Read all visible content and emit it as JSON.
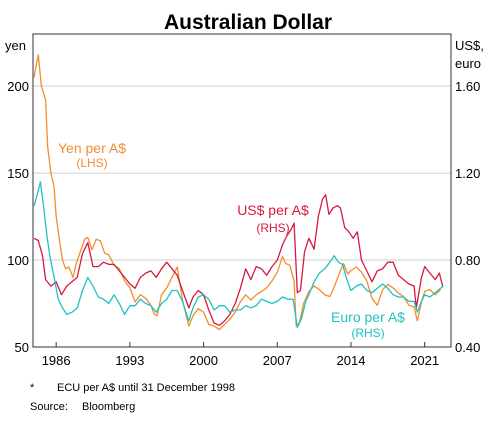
{
  "chart_data": {
    "type": "line",
    "title": "Australian Dollar",
    "left_axis": {
      "unit": "yen",
      "ticks": [
        50,
        100,
        150,
        200
      ],
      "range": [
        50,
        230
      ]
    },
    "right_axis": {
      "unit_line1": "US$,",
      "unit_line2": "euro",
      "ticks": [
        "0.40",
        "0.80",
        "1.20",
        "1.60"
      ],
      "range": [
        0.4,
        1.84
      ]
    },
    "x_axis": {
      "ticks": [
        "1986",
        "1993",
        "2000",
        "2007",
        "2014",
        "2021"
      ],
      "range": [
        1983.8,
        2023.5
      ]
    },
    "grid": true,
    "series": [
      {
        "name": "Yen per A$",
        "sub": "(LHS)",
        "axis": "left",
        "color": "#f28e2b",
        "points": [
          [
            1983.9,
            205
          ],
          [
            1984.1,
            212
          ],
          [
            1984.3,
            218
          ],
          [
            1984.6,
            200
          ],
          [
            1985.0,
            192
          ],
          [
            1985.2,
            165
          ],
          [
            1985.5,
            150
          ],
          [
            1985.8,
            142
          ],
          [
            1986.0,
            125
          ],
          [
            1986.3,
            112
          ],
          [
            1986.6,
            100
          ],
          [
            1986.9,
            95
          ],
          [
            1987.2,
            96
          ],
          [
            1987.6,
            90
          ],
          [
            1987.9,
            98
          ],
          [
            1988.3,
            105
          ],
          [
            1988.7,
            112
          ],
          [
            1989.0,
            113
          ],
          [
            1989.4,
            106
          ],
          [
            1989.8,
            112
          ],
          [
            1990.2,
            111
          ],
          [
            1990.6,
            104
          ],
          [
            1991.0,
            103
          ],
          [
            1991.5,
            97
          ],
          [
            1992.0,
            95
          ],
          [
            1992.5,
            88
          ],
          [
            1993.0,
            84
          ],
          [
            1993.5,
            76
          ],
          [
            1994.0,
            80
          ],
          [
            1994.5,
            78
          ],
          [
            1995.0,
            74
          ],
          [
            1995.3,
            69
          ],
          [
            1995.6,
            68
          ],
          [
            1996.0,
            80
          ],
          [
            1996.5,
            84
          ],
          [
            1997.0,
            90
          ],
          [
            1997.5,
            96
          ],
          [
            1998.0,
            77
          ],
          [
            1998.6,
            62
          ],
          [
            1999.0,
            68
          ],
          [
            1999.5,
            72
          ],
          [
            2000.0,
            70
          ],
          [
            2000.5,
            63
          ],
          [
            2001.0,
            62
          ],
          [
            2001.5,
            60
          ],
          [
            2002.0,
            63
          ],
          [
            2002.5,
            66
          ],
          [
            2003.0,
            70
          ],
          [
            2003.5,
            76
          ],
          [
            2004.0,
            80
          ],
          [
            2004.5,
            77
          ],
          [
            2005.0,
            80
          ],
          [
            2005.5,
            82
          ],
          [
            2006.0,
            84
          ],
          [
            2006.5,
            88
          ],
          [
            2007.0,
            93
          ],
          [
            2007.5,
            102
          ],
          [
            2007.8,
            98
          ],
          [
            2008.2,
            97
          ],
          [
            2008.6,
            88
          ],
          [
            2008.8,
            62
          ],
          [
            2009.1,
            64
          ],
          [
            2009.5,
            75
          ],
          [
            2010.0,
            82
          ],
          [
            2010.5,
            85
          ],
          [
            2011.0,
            83
          ],
          [
            2011.5,
            80
          ],
          [
            2012.0,
            79
          ],
          [
            2012.5,
            86
          ],
          [
            2013.0,
            94
          ],
          [
            2013.3,
            98
          ],
          [
            2013.7,
            92
          ],
          [
            2014.0,
            94
          ],
          [
            2014.5,
            96
          ],
          [
            2015.0,
            93
          ],
          [
            2015.5,
            88
          ],
          [
            2016.0,
            78
          ],
          [
            2016.5,
            74
          ],
          [
            2017.0,
            83
          ],
          [
            2017.5,
            86
          ],
          [
            2018.0,
            84
          ],
          [
            2018.5,
            81
          ],
          [
            2019.0,
            79
          ],
          [
            2019.5,
            74
          ],
          [
            2020.0,
            73
          ],
          [
            2020.3,
            65
          ],
          [
            2020.7,
            76
          ],
          [
            2021.0,
            82
          ],
          [
            2021.5,
            83
          ],
          [
            2022.0,
            80
          ],
          [
            2022.5,
            83
          ]
        ]
      },
      {
        "name": "US$ per A$",
        "sub": "(RHS)",
        "axis": "right",
        "color": "#d7193f",
        "points": [
          [
            1983.9,
            0.9
          ],
          [
            1984.3,
            0.89
          ],
          [
            1984.7,
            0.82
          ],
          [
            1985.0,
            0.71
          ],
          [
            1985.5,
            0.68
          ],
          [
            1986.0,
            0.7
          ],
          [
            1986.5,
            0.64
          ],
          [
            1987.0,
            0.68
          ],
          [
            1987.5,
            0.7
          ],
          [
            1988.0,
            0.72
          ],
          [
            1988.5,
            0.83
          ],
          [
            1989.0,
            0.88
          ],
          [
            1989.5,
            0.77
          ],
          [
            1990.0,
            0.77
          ],
          [
            1990.5,
            0.79
          ],
          [
            1991.0,
            0.78
          ],
          [
            1991.5,
            0.78
          ],
          [
            1992.0,
            0.75
          ],
          [
            1992.5,
            0.72
          ],
          [
            1993.0,
            0.69
          ],
          [
            1993.5,
            0.67
          ],
          [
            1994.0,
            0.72
          ],
          [
            1994.5,
            0.74
          ],
          [
            1995.0,
            0.75
          ],
          [
            1995.5,
            0.72
          ],
          [
            1996.0,
            0.76
          ],
          [
            1996.5,
            0.79
          ],
          [
            1997.0,
            0.76
          ],
          [
            1997.5,
            0.73
          ],
          [
            1998.0,
            0.66
          ],
          [
            1998.6,
            0.58
          ],
          [
            1999.0,
            0.63
          ],
          [
            1999.5,
            0.66
          ],
          [
            2000.0,
            0.64
          ],
          [
            2000.5,
            0.57
          ],
          [
            2001.0,
            0.51
          ],
          [
            2001.5,
            0.5
          ],
          [
            2002.0,
            0.52
          ],
          [
            2002.5,
            0.55
          ],
          [
            2003.0,
            0.6
          ],
          [
            2003.5,
            0.67
          ],
          [
            2004.0,
            0.76
          ],
          [
            2004.5,
            0.71
          ],
          [
            2005.0,
            0.77
          ],
          [
            2005.5,
            0.76
          ],
          [
            2006.0,
            0.73
          ],
          [
            2006.5,
            0.77
          ],
          [
            2007.0,
            0.8
          ],
          [
            2007.5,
            0.87
          ],
          [
            2007.9,
            0.91
          ],
          [
            2008.3,
            0.94
          ],
          [
            2008.6,
            0.97
          ],
          [
            2008.9,
            0.65
          ],
          [
            2009.2,
            0.66
          ],
          [
            2009.6,
            0.84
          ],
          [
            2010.0,
            0.9
          ],
          [
            2010.5,
            0.85
          ],
          [
            2010.9,
            1.0
          ],
          [
            2011.3,
            1.08
          ],
          [
            2011.6,
            1.1
          ],
          [
            2011.9,
            1.01
          ],
          [
            2012.3,
            1.04
          ],
          [
            2012.7,
            1.05
          ],
          [
            2013.0,
            1.04
          ],
          [
            2013.4,
            0.95
          ],
          [
            2013.8,
            0.93
          ],
          [
            2014.2,
            0.9
          ],
          [
            2014.6,
            0.93
          ],
          [
            2015.0,
            0.8
          ],
          [
            2015.5,
            0.75
          ],
          [
            2016.0,
            0.7
          ],
          [
            2016.5,
            0.75
          ],
          [
            2017.0,
            0.76
          ],
          [
            2017.5,
            0.79
          ],
          [
            2018.0,
            0.79
          ],
          [
            2018.5,
            0.73
          ],
          [
            2019.0,
            0.71
          ],
          [
            2019.5,
            0.69
          ],
          [
            2020.0,
            0.68
          ],
          [
            2020.2,
            0.58
          ],
          [
            2020.7,
            0.72
          ],
          [
            2021.0,
            0.77
          ],
          [
            2021.5,
            0.74
          ],
          [
            2022.0,
            0.71
          ],
          [
            2022.4,
            0.74
          ],
          [
            2022.7,
            0.68
          ]
        ]
      },
      {
        "name": "Euro per A$",
        "sub": "(RHS)",
        "axis": "right",
        "color": "#1fc2c2",
        "points": [
          [
            1983.9,
            1.05
          ],
          [
            1984.2,
            1.1
          ],
          [
            1984.5,
            1.16
          ],
          [
            1984.8,
            1.05
          ],
          [
            1985.1,
            0.92
          ],
          [
            1985.4,
            0.82
          ],
          [
            1985.8,
            0.72
          ],
          [
            1986.2,
            0.62
          ],
          [
            1986.6,
            0.58
          ],
          [
            1987.0,
            0.55
          ],
          [
            1987.5,
            0.56
          ],
          [
            1988.0,
            0.58
          ],
          [
            1988.5,
            0.66
          ],
          [
            1989.0,
            0.72
          ],
          [
            1989.5,
            0.68
          ],
          [
            1990.0,
            0.63
          ],
          [
            1990.5,
            0.62
          ],
          [
            1991.0,
            0.6
          ],
          [
            1991.5,
            0.64
          ],
          [
            1992.0,
            0.6
          ],
          [
            1992.5,
            0.55
          ],
          [
            1993.0,
            0.59
          ],
          [
            1993.5,
            0.59
          ],
          [
            1994.0,
            0.62
          ],
          [
            1994.5,
            0.6
          ],
          [
            1995.0,
            0.59
          ],
          [
            1995.5,
            0.56
          ],
          [
            1996.0,
            0.6
          ],
          [
            1996.5,
            0.62
          ],
          [
            1997.0,
            0.66
          ],
          [
            1997.5,
            0.66
          ],
          [
            1998.0,
            0.61
          ],
          [
            1998.6,
            0.52
          ],
          [
            1999.0,
            0.58
          ],
          [
            1999.5,
            0.63
          ],
          [
            2000.0,
            0.64
          ],
          [
            2000.5,
            0.62
          ],
          [
            2001.0,
            0.57
          ],
          [
            2001.5,
            0.59
          ],
          [
            2002.0,
            0.59
          ],
          [
            2002.5,
            0.56
          ],
          [
            2003.0,
            0.57
          ],
          [
            2003.5,
            0.57
          ],
          [
            2004.0,
            0.59
          ],
          [
            2004.5,
            0.58
          ],
          [
            2005.0,
            0.59
          ],
          [
            2005.5,
            0.62
          ],
          [
            2006.0,
            0.61
          ],
          [
            2006.5,
            0.6
          ],
          [
            2007.0,
            0.61
          ],
          [
            2007.5,
            0.63
          ],
          [
            2008.0,
            0.62
          ],
          [
            2008.5,
            0.62
          ],
          [
            2008.9,
            0.49
          ],
          [
            2009.3,
            0.53
          ],
          [
            2009.7,
            0.61
          ],
          [
            2010.0,
            0.64
          ],
          [
            2010.5,
            0.7
          ],
          [
            2011.0,
            0.74
          ],
          [
            2011.5,
            0.76
          ],
          [
            2012.0,
            0.79
          ],
          [
            2012.4,
            0.82
          ],
          [
            2012.8,
            0.79
          ],
          [
            2013.2,
            0.78
          ],
          [
            2013.6,
            0.71
          ],
          [
            2014.0,
            0.66
          ],
          [
            2014.5,
            0.68
          ],
          [
            2015.0,
            0.69
          ],
          [
            2015.5,
            0.66
          ],
          [
            2016.0,
            0.65
          ],
          [
            2016.5,
            0.67
          ],
          [
            2017.0,
            0.69
          ],
          [
            2017.5,
            0.67
          ],
          [
            2018.0,
            0.64
          ],
          [
            2018.5,
            0.63
          ],
          [
            2019.0,
            0.63
          ],
          [
            2019.5,
            0.61
          ],
          [
            2020.0,
            0.61
          ],
          [
            2020.3,
            0.56
          ],
          [
            2020.7,
            0.61
          ],
          [
            2021.0,
            0.64
          ],
          [
            2021.5,
            0.63
          ],
          [
            2022.0,
            0.65
          ],
          [
            2022.5,
            0.67
          ],
          [
            2022.8,
            0.68
          ]
        ]
      }
    ]
  },
  "footnote": {
    "marker": "*",
    "text": "ECU per A$ until 31 December 1998"
  },
  "source": {
    "label": "Source:",
    "text": "Bloomberg"
  }
}
